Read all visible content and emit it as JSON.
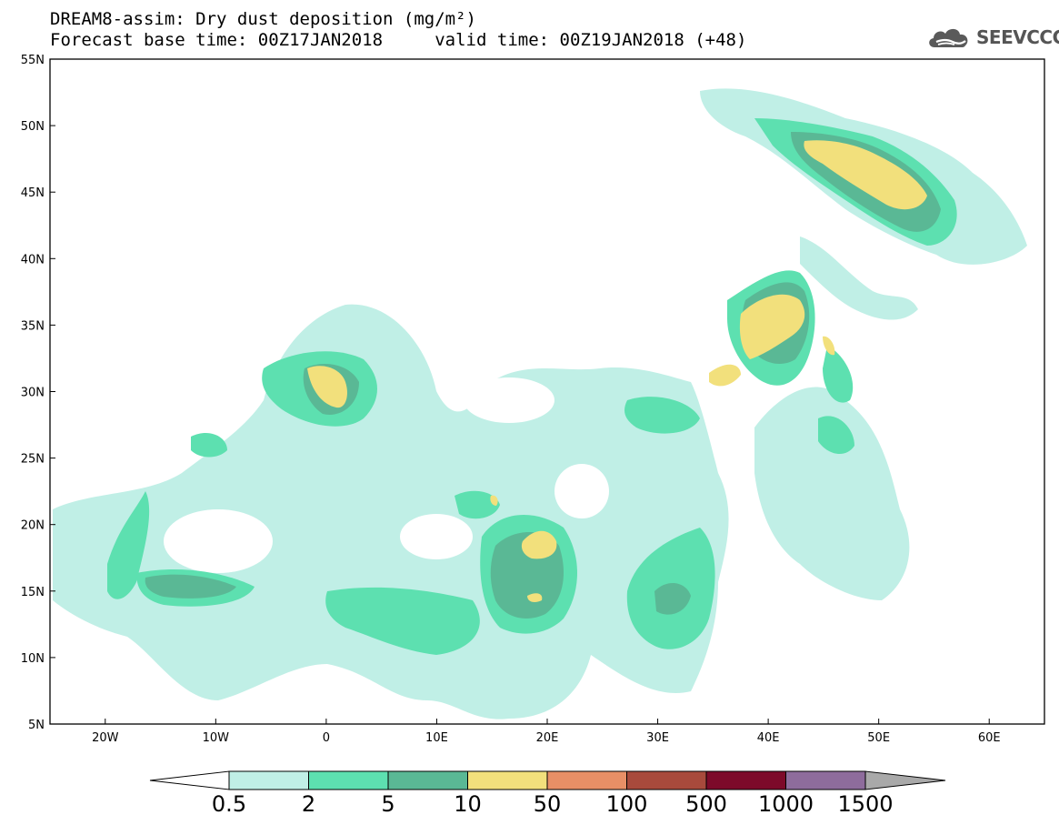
{
  "title_line1": "DREAM8-assim: Dry dust deposition (mg/m²)",
  "title_line2": "Forecast base time: 00Z17JAN2018     valid time: 00Z19JAN2018 (+48)",
  "brand": {
    "name": "SEEVCCC",
    "icon": "cloud-logo-icon"
  },
  "map": {
    "lon_range": [
      -25,
      65
    ],
    "lat_range": [
      5,
      55
    ],
    "lat_ticks": [
      "5N",
      "10N",
      "15N",
      "20N",
      "25N",
      "30N",
      "35N",
      "40N",
      "45N",
      "50N",
      "55N"
    ],
    "lon_ticks": [
      "20W",
      "10W",
      "0",
      "10E",
      "20E",
      "30E",
      "40E",
      "50E",
      "60E"
    ]
  },
  "colorbar": {
    "colors": [
      "#c0efe6",
      "#5de0b0",
      "#5ab895",
      "#f2e07c",
      "#e88f66",
      "#a84a3c",
      "#7d0a2a",
      "#8e6c9c",
      "#a9a9a9"
    ],
    "labels": [
      "0.5",
      "2",
      "5",
      "10",
      "50",
      "100",
      "500",
      "1000",
      "1500"
    ]
  }
}
